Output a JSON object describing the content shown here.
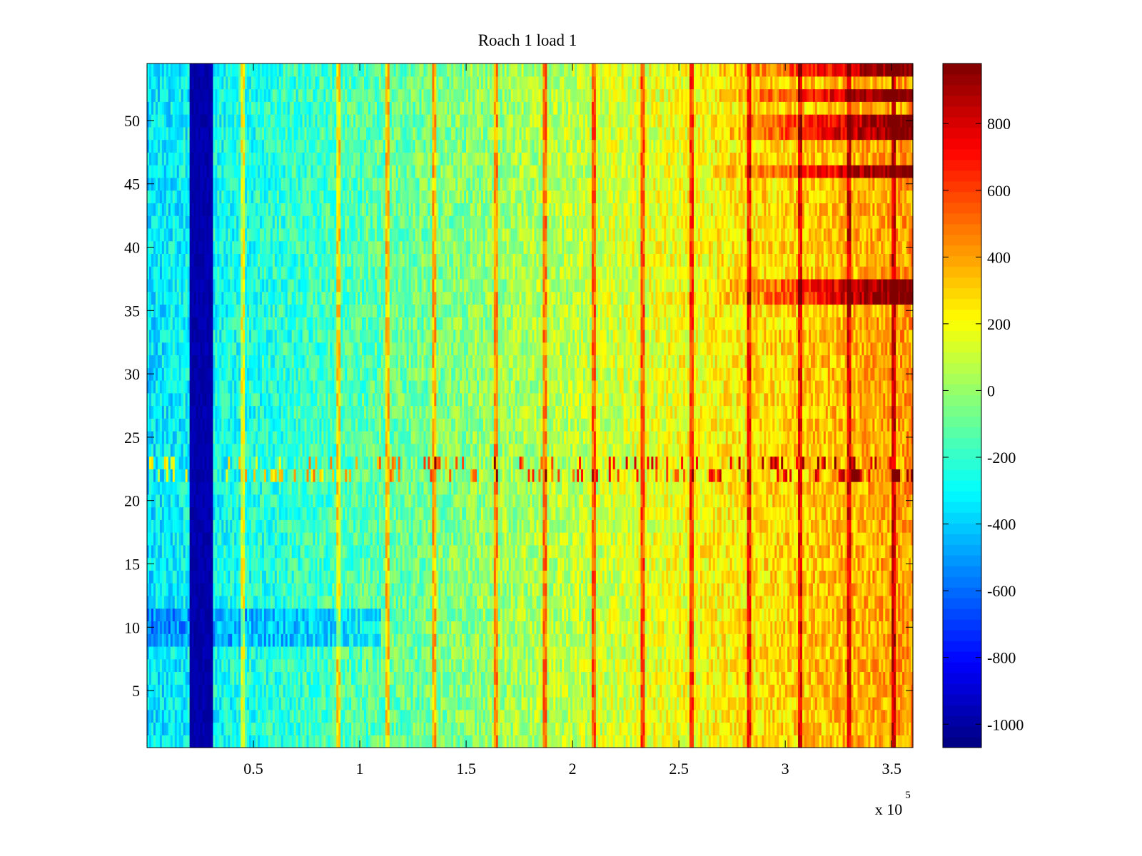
{
  "chart_data": {
    "type": "heatmap",
    "title": "Roach 1 load 1",
    "xlabel": "",
    "ylabel": "",
    "x_multiplier_label": {
      "base": "x 10",
      "exponent": "5"
    },
    "x_range": [
      0,
      360000
    ],
    "y_range": [
      0.5,
      54.5
    ],
    "rows": 54,
    "columns": 360,
    "x_ticks": [
      {
        "value": 50000,
        "label": "0.5"
      },
      {
        "value": 100000,
        "label": "1"
      },
      {
        "value": 150000,
        "label": "1.5"
      },
      {
        "value": 200000,
        "label": "2"
      },
      {
        "value": 250000,
        "label": "2.5"
      },
      {
        "value": 300000,
        "label": "3"
      },
      {
        "value": 350000,
        "label": "3.5"
      }
    ],
    "y_ticks": [
      {
        "value": 5,
        "label": "5"
      },
      {
        "value": 10,
        "label": "10"
      },
      {
        "value": 15,
        "label": "15"
      },
      {
        "value": 20,
        "label": "20"
      },
      {
        "value": 25,
        "label": "25"
      },
      {
        "value": 30,
        "label": "30"
      },
      {
        "value": 35,
        "label": "35"
      },
      {
        "value": 40,
        "label": "40"
      },
      {
        "value": 45,
        "label": "45"
      },
      {
        "value": 50,
        "label": "50"
      }
    ],
    "colorbar": {
      "colormap": "jet",
      "range": [
        -1070,
        980
      ],
      "ticks": [
        {
          "value": 800,
          "label": "800"
        },
        {
          "value": 600,
          "label": "600"
        },
        {
          "value": 400,
          "label": "400"
        },
        {
          "value": 200,
          "label": "200"
        },
        {
          "value": 0,
          "label": "0"
        },
        {
          "value": -200,
          "label": "-200"
        },
        {
          "value": -400,
          "label": "-400"
        },
        {
          "value": -600,
          "label": "-600"
        },
        {
          "value": -800,
          "label": "-800"
        },
        {
          "value": -1000,
          "label": "-1000"
        }
      ]
    },
    "trend": {
      "description_values": "mean value rises from about -350 near x=0 to about 420 near x=360000",
      "left_value": -350,
      "right_value": 420,
      "dark_band_x_range": [
        20000,
        31000
      ],
      "dark_band_value": -1020,
      "spike_columns_x": [
        45000,
        90000,
        113000,
        135000,
        164000,
        187000,
        210000,
        233000,
        256000,
        283000,
        307000,
        330000,
        351000
      ],
      "hot_rows": [
        36,
        37,
        46,
        49,
        50,
        52,
        54
      ],
      "striped_rows": [
        22,
        23
      ]
    },
    "grid": false,
    "legend": "none"
  }
}
